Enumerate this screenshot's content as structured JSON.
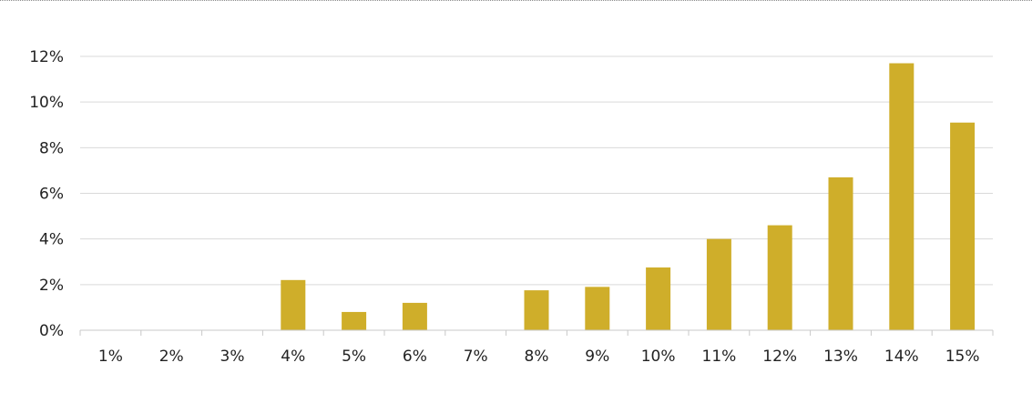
{
  "chart_data": {
    "type": "bar",
    "title": "",
    "xlabel": "",
    "ylabel": "",
    "categories": [
      "1%",
      "2%",
      "3%",
      "4%",
      "5%",
      "6%",
      "7%",
      "8%",
      "9%",
      "10%",
      "11%",
      "12%",
      "13%",
      "14%",
      "15%"
    ],
    "values": [
      0,
      0,
      0,
      2.2,
      0.8,
      1.2,
      0,
      1.75,
      1.9,
      2.75,
      4.0,
      4.6,
      6.7,
      11.7,
      9.1
    ],
    "value_unit": "%",
    "ylim": [
      0,
      12
    ],
    "yticks": [
      0,
      2,
      4,
      6,
      8,
      10,
      12
    ],
    "ytick_labels": [
      "0%",
      "2%",
      "4%",
      "6%",
      "8%",
      "10%",
      "12%"
    ],
    "grid": true,
    "legend": "none",
    "bar_color": "#cfae2a"
  }
}
